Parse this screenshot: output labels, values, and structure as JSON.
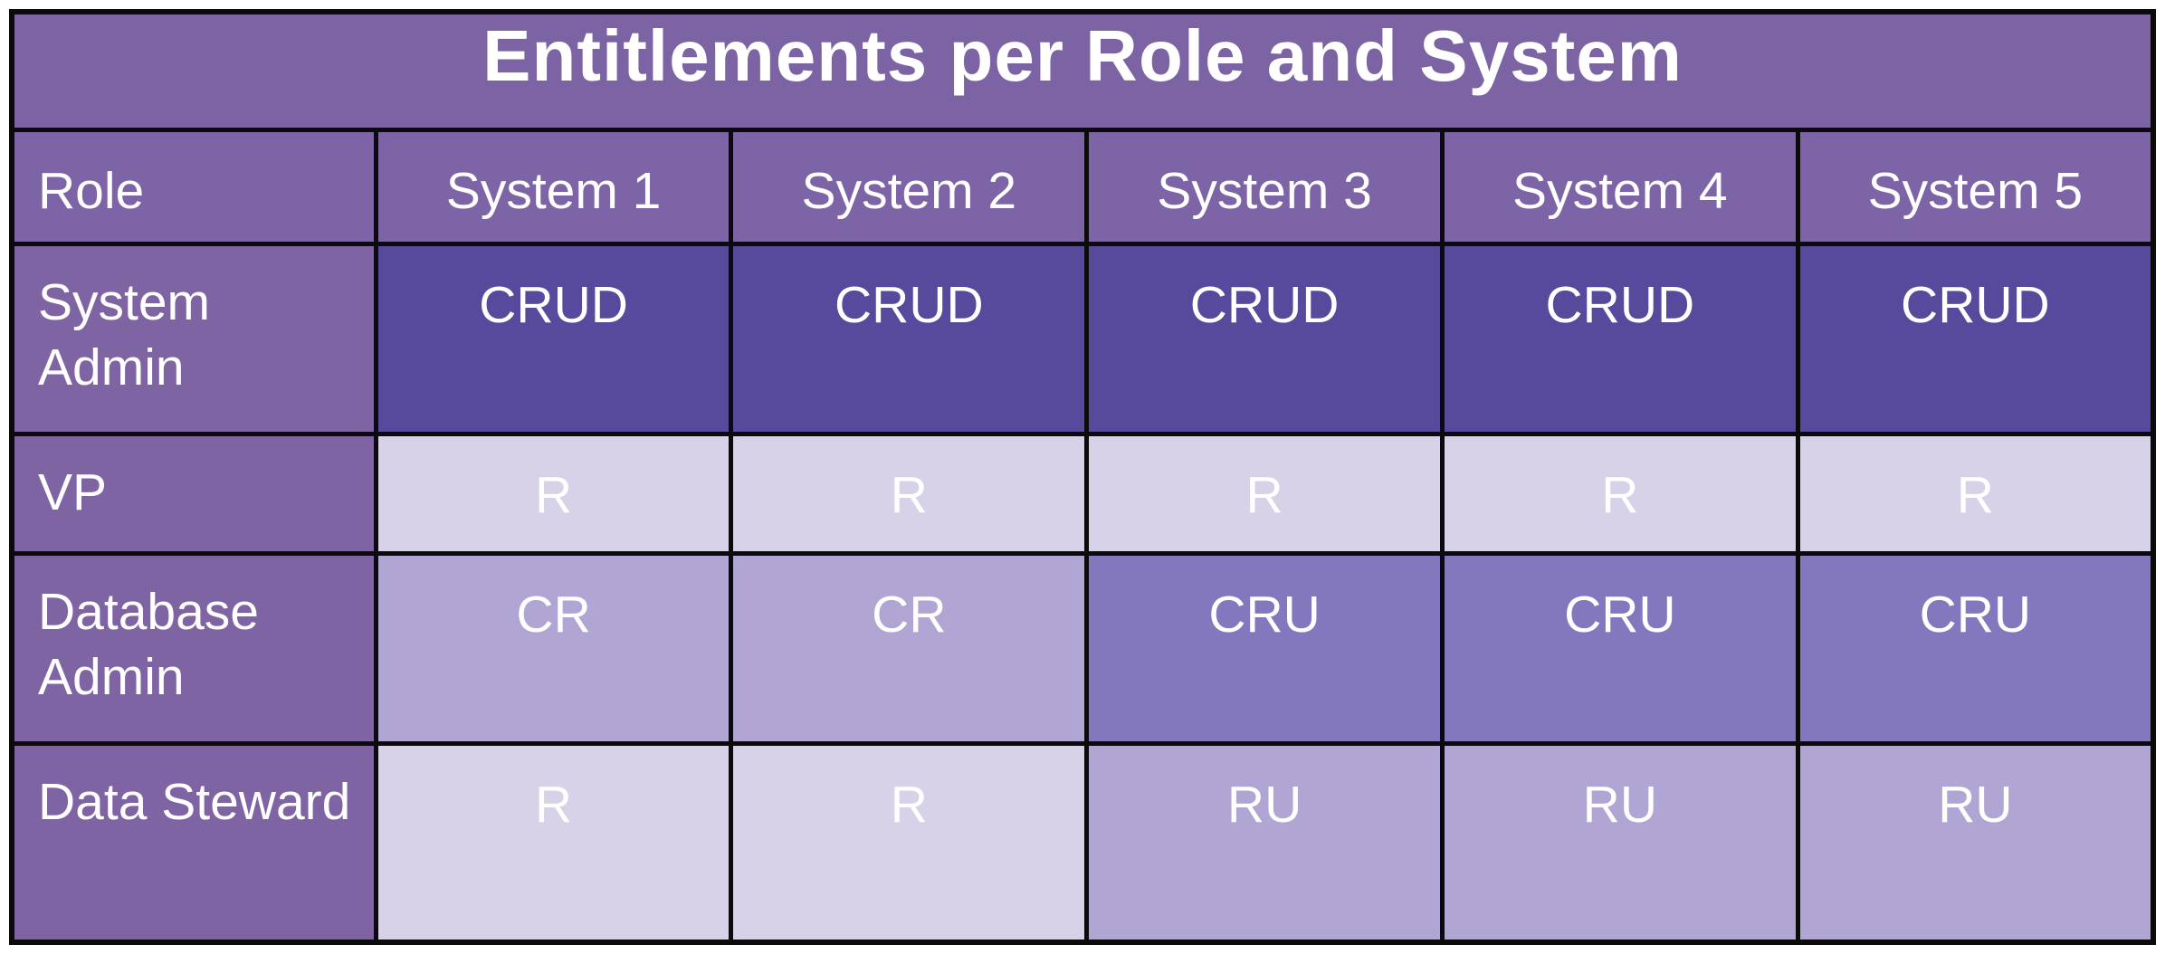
{
  "title": "Entitlements per Role and System",
  "table": {
    "columns": [
      "Role",
      "System 1",
      "System 2",
      "System 3",
      "System 4",
      "System 5"
    ],
    "rows": [
      {
        "role": "System Admin",
        "entitlements": [
          "CRUD",
          "CRUD",
          "CRUD",
          "CRUD",
          "CRUD"
        ]
      },
      {
        "role": "VP",
        "entitlements": [
          "R",
          "R",
          "R",
          "R",
          "R"
        ]
      },
      {
        "role": "Database Admin",
        "entitlements": [
          "CR",
          "CR",
          "CRU",
          "CRU",
          "CRU"
        ]
      },
      {
        "role": "Data Steward",
        "entitlements": [
          "R",
          "R",
          "RU",
          "RU",
          "RU"
        ]
      }
    ]
  },
  "colors": {
    "page_background": "#ffffff",
    "grid_line": "#0b0b0b",
    "title_background": "#7b63a4",
    "header_background": "#7d64a6",
    "role_cell_background": "#7f64a4",
    "text": "#ffffff",
    "entitlement_backgrounds": {
      "CRUD": "#574a9c",
      "CRU": "#8377bd",
      "CR": "#b1a6d3",
      "RU": "#b1a6d3",
      "R": "#d7d2e8"
    }
  }
}
